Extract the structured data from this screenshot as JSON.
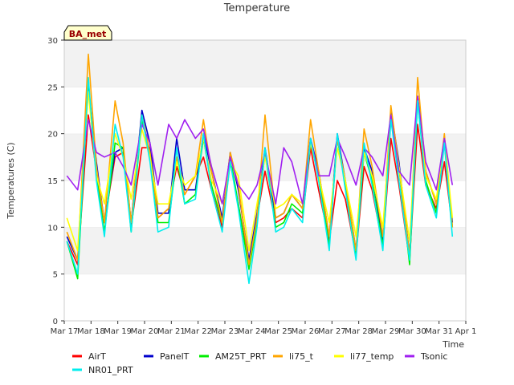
{
  "chart_data": {
    "type": "line",
    "title": "Temperature",
    "xlabel": "Time",
    "ylabel": "Temperatures (C)",
    "site_tag": "BA_met",
    "x_ticks": [
      "Mar 17",
      "Mar 18",
      "Mar 19",
      "Mar 20",
      "Mar 21",
      "Mar 22",
      "Mar 23",
      "Mar 24",
      "Mar 25",
      "Mar 26",
      "Mar 27",
      "Mar 28",
      "Mar 29",
      "Mar 30",
      "Mar 31",
      "Apr 1"
    ],
    "xlim": [
      0,
      15
    ],
    "ylim": [
      0,
      30
    ],
    "y_ticks": [
      0,
      5,
      10,
      15,
      20,
      25,
      30
    ],
    "grid": "horizontal bands",
    "legend_position": "bottom",
    "colors": {
      "AirT": "#ff0000",
      "PanelT": "#0000cc",
      "AM25T_PRT": "#00ee00",
      "li75_t": "#ffa500",
      "li77_temp": "#ffff00",
      "Tsonic": "#a020f0",
      "NR01_PRT": "#00eeee"
    },
    "legend_rows": [
      [
        "AirT",
        "PanelT",
        "AM25T_PRT",
        "li75_t",
        "li77_temp",
        "Tsonic"
      ],
      [
        "NR01_PRT"
      ]
    ],
    "x_days": [
      0.1,
      0.5,
      0.9,
      1.2,
      1.5,
      1.9,
      2.2,
      2.5,
      2.9,
      3.2,
      3.5,
      3.9,
      4.2,
      4.5,
      4.9,
      5.2,
      5.5,
      5.9,
      6.2,
      6.5,
      6.9,
      7.2,
      7.5,
      7.9,
      8.2,
      8.5,
      8.9,
      9.2,
      9.5,
      9.9,
      10.2,
      10.5,
      10.9,
      11.2,
      11.5,
      11.9,
      12.2,
      12.5,
      12.9,
      13.2,
      13.5,
      13.9,
      14.2,
      14.5
    ],
    "series": [
      {
        "name": "AirT",
        "values": [
          8.5,
          6.0,
          22.0,
          16.0,
          10.5,
          17.5,
          18.0,
          10.0,
          18.5,
          18.5,
          11.0,
          12.0,
          16.5,
          13.5,
          15.5,
          17.5,
          14.0,
          10.0,
          17.0,
          12.5,
          6.0,
          11.0,
          16.0,
          10.5,
          11.0,
          12.0,
          11.0,
          18.5,
          14.0,
          8.5,
          15.0,
          13.0,
          7.0,
          16.5,
          14.0,
          8.0,
          19.5,
          14.5,
          6.5,
          21.0,
          14.5,
          12.0,
          17.0,
          10.0
        ]
      },
      {
        "name": "PanelT",
        "values": [
          9.0,
          6.5,
          25.0,
          17.0,
          10.5,
          18.0,
          18.5,
          10.5,
          22.5,
          19.0,
          11.5,
          11.5,
          19.5,
          14.0,
          14.0,
          20.0,
          16.0,
          11.0,
          18.0,
          14.0,
          6.5,
          11.5,
          18.5,
          11.0,
          11.5,
          13.5,
          12.0,
          19.5,
          16.0,
          9.0,
          20.0,
          15.0,
          7.5,
          18.5,
          16.0,
          8.5,
          22.5,
          17.0,
          7.0,
          24.0,
          16.0,
          12.5,
          19.0,
          10.5
        ]
      },
      {
        "name": "AM25T_PRT",
        "values": [
          8.5,
          4.5,
          25.5,
          15.5,
          9.5,
          19.0,
          18.5,
          9.5,
          21.5,
          18.0,
          10.5,
          10.5,
          17.5,
          12.5,
          13.5,
          19.5,
          14.5,
          10.5,
          17.5,
          12.5,
          5.5,
          10.5,
          18.0,
          10.0,
          10.5,
          12.5,
          11.5,
          19.0,
          15.5,
          8.0,
          19.5,
          14.5,
          7.0,
          18.0,
          15.0,
          8.0,
          22.0,
          16.5,
          6.0,
          23.5,
          15.0,
          11.5,
          19.5,
          10.0
        ]
      },
      {
        "name": "li75_t",
        "values": [
          9.5,
          6.5,
          28.5,
          16.5,
          10.5,
          23.5,
          19.0,
          10.5,
          22.0,
          18.0,
          11.0,
          12.0,
          17.5,
          13.5,
          15.5,
          21.5,
          16.0,
          10.5,
          18.0,
          14.5,
          6.0,
          11.0,
          22.0,
          11.0,
          11.5,
          13.5,
          12.0,
          21.5,
          16.0,
          9.0,
          19.5,
          15.0,
          7.5,
          20.5,
          16.5,
          9.0,
          23.0,
          16.5,
          7.0,
          26.0,
          16.0,
          12.5,
          20.0,
          10.0
        ]
      },
      {
        "name": "li77_temp",
        "values": [
          11.0,
          7.5,
          24.5,
          15.5,
          12.5,
          20.0,
          17.5,
          13.0,
          20.5,
          17.5,
          12.5,
          12.5,
          17.0,
          14.5,
          15.5,
          19.5,
          15.0,
          12.5,
          17.0,
          15.5,
          7.5,
          12.5,
          17.5,
          12.0,
          12.5,
          13.5,
          12.5,
          19.0,
          15.5,
          10.5,
          18.5,
          15.0,
          9.0,
          18.0,
          15.5,
          10.0,
          21.5,
          16.5,
          8.5,
          23.5,
          15.5,
          13.0,
          19.5,
          11.0
        ]
      },
      {
        "name": "Tsonic",
        "values": [
          15.5,
          14.0,
          21.5,
          18.0,
          17.5,
          18.0,
          16.5,
          14.5,
          21.0,
          19.0,
          14.5,
          21.0,
          19.5,
          21.5,
          19.5,
          20.5,
          16.5,
          12.5,
          17.5,
          14.5,
          13.0,
          14.5,
          18.0,
          12.5,
          18.5,
          17.0,
          12.5,
          19.5,
          15.5,
          15.5,
          19.5,
          17.5,
          14.5,
          18.5,
          17.5,
          15.5,
          22.0,
          16.0,
          14.5,
          24.0,
          17.0,
          14.0,
          19.5,
          14.5
        ]
      },
      {
        "name": "NR01_PRT",
        "values": [
          8.5,
          5.0,
          26.0,
          15.0,
          9.0,
          21.0,
          17.5,
          9.5,
          22.0,
          17.0,
          9.5,
          10.0,
          18.5,
          12.5,
          13.0,
          20.0,
          14.0,
          9.5,
          17.0,
          12.0,
          4.0,
          10.0,
          18.5,
          9.5,
          10.0,
          12.0,
          10.5,
          19.5,
          15.0,
          7.5,
          20.0,
          14.0,
          6.5,
          19.0,
          14.5,
          7.5,
          21.5,
          15.0,
          6.5,
          23.5,
          14.5,
          11.0,
          19.0,
          9.0
        ]
      }
    ]
  }
}
